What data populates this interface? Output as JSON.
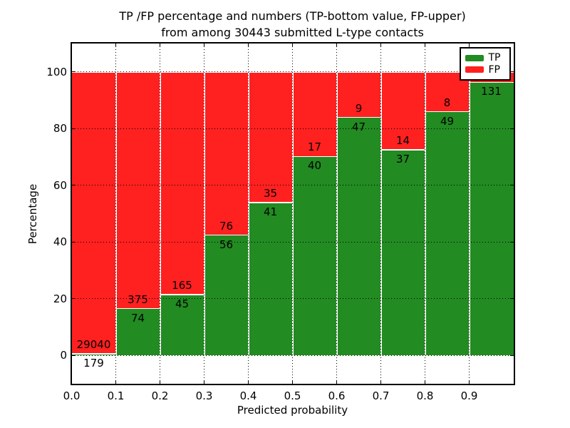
{
  "figure": {
    "title_line1": "TP /FP percentage and numbers (TP-bottom value, FP-upper)",
    "title_line2": "from among 30443 submitted L-type contacts"
  },
  "chart_data": {
    "type": "bar",
    "variant": "stacked-percentage",
    "title": "TP /FP percentage and numbers (TP-bottom value, FP-upper)\nfrom among 30443 submitted L-type contacts",
    "xlabel": "Predicted probability",
    "ylabel": "Percentage",
    "xlim": [
      0.0,
      1.0
    ],
    "ylim": [
      -10,
      110
    ],
    "x_tick_labels": [
      "0.0",
      "0.1",
      "0.2",
      "0.3",
      "0.4",
      "0.5",
      "0.6",
      "0.7",
      "0.8",
      "0.9"
    ],
    "y_tick_values": [
      0,
      20,
      40,
      60,
      80,
      100
    ],
    "grid": {
      "style": "dotted",
      "color": "#000000"
    },
    "colors": {
      "tp": "#228B22",
      "fp": "#FF2020"
    },
    "legend": {
      "location": "upper right",
      "entries": [
        {
          "label": "TP",
          "color": "#228B22"
        },
        {
          "label": "FP",
          "color": "#FF2020"
        }
      ]
    },
    "bars": [
      {
        "x_start": 0.0,
        "x_end": 0.1,
        "tp_count": 179,
        "fp_count": 29040,
        "tp_pct": 0.61,
        "fp_label_visible": true
      },
      {
        "x_start": 0.1,
        "x_end": 0.2,
        "tp_count": 74,
        "fp_count": 375,
        "tp_pct": 16.48,
        "fp_label_visible": true
      },
      {
        "x_start": 0.2,
        "x_end": 0.3,
        "tp_count": 45,
        "fp_count": 165,
        "tp_pct": 21.43,
        "fp_label_visible": true
      },
      {
        "x_start": 0.3,
        "x_end": 0.4,
        "tp_count": 56,
        "fp_count": 76,
        "tp_pct": 42.42,
        "fp_label_visible": true
      },
      {
        "x_start": 0.4,
        "x_end": 0.5,
        "tp_count": 41,
        "fp_count": 35,
        "tp_pct": 53.95,
        "fp_label_visible": true
      },
      {
        "x_start": 0.5,
        "x_end": 0.6,
        "tp_count": 40,
        "fp_count": 17,
        "tp_pct": 70.18,
        "fp_label_visible": true
      },
      {
        "x_start": 0.6,
        "x_end": 0.7,
        "tp_count": 47,
        "fp_count": 9,
        "tp_pct": 83.93,
        "fp_label_visible": true
      },
      {
        "x_start": 0.7,
        "x_end": 0.8,
        "tp_count": 37,
        "fp_count": 14,
        "tp_pct": 72.55,
        "fp_label_visible": true
      },
      {
        "x_start": 0.8,
        "x_end": 0.9,
        "tp_count": 49,
        "fp_count": 8,
        "tp_pct": 85.96,
        "fp_label_visible": true
      },
      {
        "x_start": 0.9,
        "x_end": 1.0,
        "tp_count": 131,
        "fp_count": null,
        "tp_pct": 96.3,
        "fp_label_visible": false
      }
    ]
  }
}
